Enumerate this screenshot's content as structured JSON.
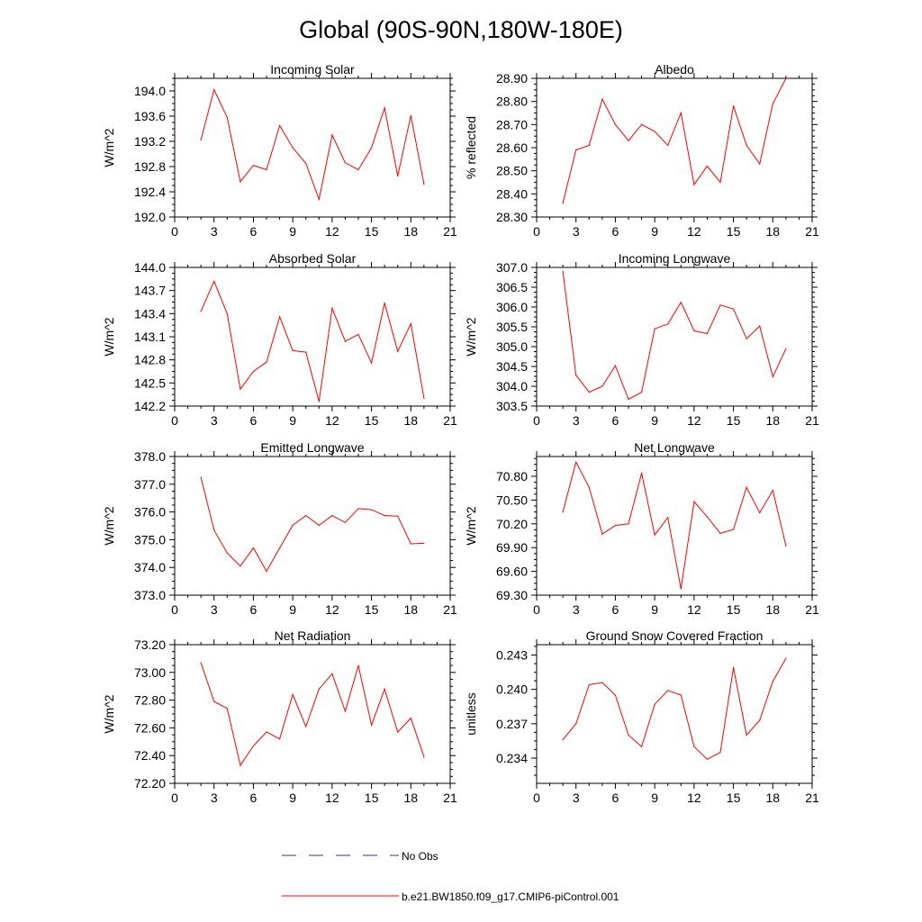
{
  "page_title": "Global (90S-90N,180W-180E)",
  "colors": {
    "model_line": "#ff0000",
    "obs_line": "#3333aa",
    "axis": "#000000"
  },
  "legend": {
    "obs_label": "No Obs",
    "model_label": "b.e21.BW1850.f09_g17.CMIP6-piControl.001"
  },
  "chart_data": [
    {
      "type": "line",
      "title": "Incoming Solar",
      "xlabel": "",
      "ylabel": "W/m^2",
      "xlim": [
        0,
        21
      ],
      "xticks": [
        0,
        3,
        6,
        9,
        12,
        15,
        18,
        21
      ],
      "ylim": [
        192.0,
        194.2
      ],
      "yticks": [
        192.0,
        192.4,
        192.8,
        193.2,
        193.6,
        194.0
      ],
      "ytick_labels": [
        "192.0",
        "192.4",
        "192.8",
        "193.2",
        "193.6",
        "194.0"
      ],
      "grid": false,
      "series": [
        {
          "name": "b.e21.BW1850.f09_g17.CMIP6-piControl.001",
          "x": [
            2,
            3,
            4,
            5,
            6,
            7,
            8,
            9,
            10,
            11,
            12,
            13,
            14,
            15,
            16,
            17,
            18,
            19
          ],
          "values": [
            193.22,
            194.02,
            193.58,
            192.56,
            192.82,
            192.75,
            193.45,
            193.1,
            192.85,
            192.28,
            193.3,
            192.86,
            192.75,
            193.1,
            193.73,
            192.65,
            193.61,
            192.52
          ]
        }
      ]
    },
    {
      "type": "line",
      "title": "Albedo",
      "xlabel": "",
      "ylabel": "% reflected",
      "xlim": [
        0,
        21
      ],
      "xticks": [
        0,
        3,
        6,
        9,
        12,
        15,
        18,
        21
      ],
      "ylim": [
        28.3,
        28.9
      ],
      "yticks": [
        28.3,
        28.4,
        28.5,
        28.6,
        28.7,
        28.8,
        28.9
      ],
      "ytick_labels": [
        "28.30",
        "28.40",
        "28.50",
        "28.60",
        "28.70",
        "28.80",
        "28.90"
      ],
      "grid": false,
      "series": [
        {
          "name": "b.e21.BW1850.f09_g17.CMIP6-piControl.001",
          "x": [
            2,
            3,
            4,
            5,
            6,
            7,
            8,
            9,
            10,
            11,
            12,
            13,
            14,
            15,
            16,
            17,
            18,
            19
          ],
          "values": [
            28.36,
            28.59,
            28.61,
            28.81,
            28.7,
            28.63,
            28.7,
            28.67,
            28.61,
            28.75,
            28.44,
            28.52,
            28.45,
            28.78,
            28.61,
            28.53,
            28.79,
            28.9
          ]
        }
      ]
    },
    {
      "type": "line",
      "title": "Absorbed Solar",
      "xlabel": "",
      "ylabel": "W/m^2",
      "xlim": [
        0,
        21
      ],
      "xticks": [
        0,
        3,
        6,
        9,
        12,
        15,
        18,
        21
      ],
      "ylim": [
        142.2,
        144.0
      ],
      "yticks": [
        142.2,
        142.5,
        142.8,
        143.1,
        143.4,
        143.7,
        144.0
      ],
      "ytick_labels": [
        "142.2",
        "142.5",
        "142.8",
        "143.1",
        "143.4",
        "143.7",
        "144.0"
      ],
      "grid": false,
      "series": [
        {
          "name": "b.e21.BW1850.f09_g17.CMIP6-piControl.001",
          "x": [
            2,
            3,
            4,
            5,
            6,
            7,
            8,
            9,
            10,
            11,
            12,
            13,
            14,
            15,
            16,
            17,
            18,
            19
          ],
          "values": [
            143.43,
            143.82,
            143.4,
            142.42,
            142.65,
            142.77,
            143.36,
            142.92,
            142.9,
            142.26,
            143.47,
            143.04,
            143.13,
            142.76,
            143.54,
            142.91,
            143.27,
            142.3
          ]
        }
      ]
    },
    {
      "type": "line",
      "title": "Incoming Longwave",
      "xlabel": "",
      "ylabel": "W/m^2",
      "xlim": [
        0,
        21
      ],
      "xticks": [
        0,
        3,
        6,
        9,
        12,
        15,
        18,
        21
      ],
      "ylim": [
        303.5,
        307.0
      ],
      "yticks": [
        303.5,
        304.0,
        304.5,
        305.0,
        305.5,
        306.0,
        306.5,
        307.0
      ],
      "ytick_labels": [
        "303.5",
        "304.0",
        "304.5",
        "305.0",
        "305.5",
        "306.0",
        "306.5",
        "307.0"
      ],
      "grid": false,
      "series": [
        {
          "name": "b.e21.BW1850.f09_g17.CMIP6-piControl.001",
          "x": [
            2,
            3,
            4,
            5,
            6,
            7,
            8,
            9,
            10,
            11,
            12,
            13,
            14,
            15,
            16,
            17,
            18,
            19
          ],
          "values": [
            306.9,
            304.28,
            303.85,
            304.0,
            304.52,
            303.67,
            303.85,
            305.45,
            305.57,
            306.12,
            305.4,
            305.33,
            306.05,
            305.95,
            305.2,
            305.52,
            304.24,
            304.95
          ]
        }
      ]
    },
    {
      "type": "line",
      "title": "Emitted Longwave",
      "xlabel": "",
      "ylabel": "W/m^2",
      "xlim": [
        0,
        21
      ],
      "xticks": [
        0,
        3,
        6,
        9,
        12,
        15,
        18,
        21
      ],
      "ylim": [
        373.0,
        378.0
      ],
      "yticks": [
        373.0,
        374.0,
        375.0,
        376.0,
        377.0,
        378.0
      ],
      "ytick_labels": [
        "373.0",
        "374.0",
        "375.0",
        "376.0",
        "377.0",
        "378.0"
      ],
      "grid": false,
      "series": [
        {
          "name": "b.e21.BW1850.f09_g17.CMIP6-piControl.001",
          "x": [
            2,
            3,
            4,
            5,
            6,
            7,
            8,
            9,
            10,
            11,
            12,
            13,
            14,
            15,
            16,
            17,
            18,
            19
          ],
          "values": [
            377.25,
            375.35,
            374.52,
            374.05,
            374.7,
            373.86,
            374.7,
            375.52,
            375.87,
            375.52,
            375.87,
            375.62,
            376.12,
            376.08,
            375.87,
            375.85,
            374.85,
            374.87
          ]
        }
      ]
    },
    {
      "type": "line",
      "title": "Net Longwave",
      "xlabel": "",
      "ylabel": "W/m^2",
      "xlim": [
        0,
        21
      ],
      "xticks": [
        0,
        3,
        6,
        9,
        12,
        15,
        18,
        21
      ],
      "ylim": [
        69.3,
        71.05
      ],
      "yticks": [
        69.3,
        69.6,
        69.9,
        70.2,
        70.5,
        70.8
      ],
      "ytick_labels": [
        "69.30",
        "69.60",
        "69.90",
        "70.20",
        "70.50",
        "70.80"
      ],
      "grid": false,
      "series": [
        {
          "name": "b.e21.BW1850.f09_g17.CMIP6-piControl.001",
          "x": [
            2,
            3,
            4,
            5,
            6,
            7,
            8,
            9,
            10,
            11,
            12,
            13,
            14,
            15,
            16,
            17,
            18,
            19
          ],
          "values": [
            70.35,
            70.98,
            70.66,
            70.07,
            70.18,
            70.2,
            70.84,
            70.06,
            70.28,
            69.38,
            70.48,
            70.29,
            70.08,
            70.13,
            70.66,
            70.34,
            70.62,
            69.92
          ]
        }
      ]
    },
    {
      "type": "line",
      "title": "Net Radiation",
      "xlabel": "",
      "ylabel": "W/m^2",
      "xlim": [
        0,
        21
      ],
      "xticks": [
        0,
        3,
        6,
        9,
        12,
        15,
        18,
        21
      ],
      "ylim": [
        72.2,
        73.2
      ],
      "yticks": [
        72.2,
        72.4,
        72.6,
        72.8,
        73.0,
        73.2
      ],
      "ytick_labels": [
        "72.20",
        "72.40",
        "72.60",
        "72.80",
        "73.00",
        "73.20"
      ],
      "grid": false,
      "series": [
        {
          "name": "b.e21.BW1850.f09_g17.CMIP6-piControl.001",
          "x": [
            2,
            3,
            4,
            5,
            6,
            7,
            8,
            9,
            10,
            11,
            12,
            13,
            14,
            15,
            16,
            17,
            18,
            19
          ],
          "values": [
            73.07,
            72.79,
            72.74,
            72.33,
            72.47,
            72.57,
            72.52,
            72.84,
            72.61,
            72.88,
            72.99,
            72.72,
            73.05,
            72.62,
            72.88,
            72.57,
            72.67,
            72.39
          ]
        }
      ]
    },
    {
      "type": "line",
      "title": "Ground Snow Covered Fraction",
      "xlabel": "",
      "ylabel": "unitless",
      "xlim": [
        0,
        21
      ],
      "xticks": [
        0,
        3,
        6,
        9,
        12,
        15,
        18,
        21
      ],
      "ylim": [
        0.2318,
        0.2439
      ],
      "yticks": [
        0.234,
        0.237,
        0.24,
        0.243
      ],
      "ytick_labels": [
        "0.234",
        "0.237",
        "0.240",
        "0.243"
      ],
      "grid": false,
      "series": [
        {
          "name": "b.e21.BW1850.f09_g17.CMIP6-piControl.001",
          "x": [
            2,
            3,
            4,
            5,
            6,
            7,
            8,
            9,
            10,
            11,
            12,
            13,
            14,
            15,
            16,
            17,
            18,
            19
          ],
          "values": [
            0.2356,
            0.237,
            0.2404,
            0.2406,
            0.2395,
            0.236,
            0.235,
            0.2387,
            0.2399,
            0.2395,
            0.235,
            0.2339,
            0.2345,
            0.2419,
            0.236,
            0.2373,
            0.2407,
            0.2427
          ]
        }
      ]
    }
  ]
}
